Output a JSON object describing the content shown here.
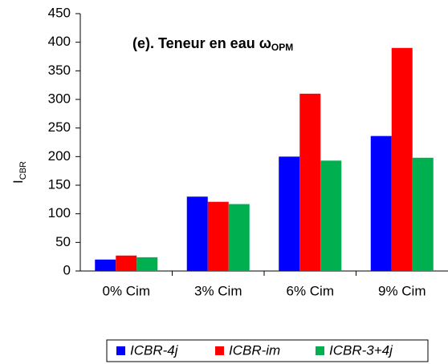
{
  "chart_data": {
    "type": "bar",
    "title": "(e). Teneur en eau ω",
    "title_sub": "OPM",
    "y_label": "I",
    "y_label_sub": "CBR",
    "categories": [
      "0% Cim",
      "3% Cim",
      "6% Cim",
      "9% Cim"
    ],
    "series": [
      {
        "name": "ICBR-4j",
        "color": "#0000ff",
        "values": [
          20,
          130,
          200,
          236
        ]
      },
      {
        "name": "ICBR-im",
        "color": "#ff0000",
        "values": [
          27,
          121,
          310,
          390
        ]
      },
      {
        "name": "ICBR-3+4j",
        "color": "#00b050",
        "values": [
          24,
          117,
          193,
          198
        ]
      }
    ],
    "ylim": [
      0,
      450
    ],
    "yticks": [
      0,
      50,
      100,
      150,
      200,
      250,
      300,
      350,
      400,
      450
    ],
    "grid": false,
    "legend": "bottom"
  }
}
